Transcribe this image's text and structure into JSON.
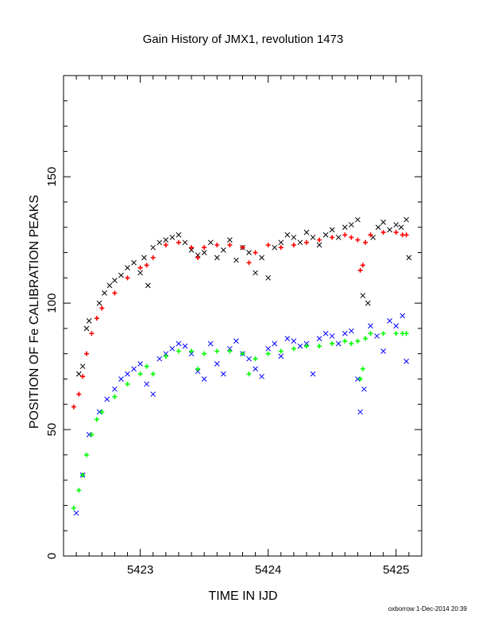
{
  "chart_data": {
    "type": "scatter",
    "title": "Gain History of JMX1, revolution 1473",
    "xlabel": "TIME IN IJD",
    "ylabel": "POSITION OF Fe CALIBRATION PEAKS",
    "xlim": [
      5422.4,
      5425.2
    ],
    "ylim": [
      0,
      190
    ],
    "x_ticks": [
      5423,
      5424,
      5425
    ],
    "y_ticks": [
      0,
      50,
      100,
      150
    ],
    "grid": false,
    "footer": "oxborrow 1-Dec-2014 20:39",
    "series": [
      {
        "color": "#000000",
        "marker": "x",
        "x": [
          5422.52,
          5422.55,
          5422.58,
          5422.6,
          5422.68,
          5422.72,
          5422.76,
          5422.8,
          5422.85,
          5422.9,
          5422.95,
          5423.0,
          5423.03,
          5423.06,
          5423.1,
          5423.15,
          5423.2,
          5423.25,
          5423.3,
          5423.35,
          5423.4,
          5423.45,
          5423.5,
          5423.55,
          5423.6,
          5423.65,
          5423.7,
          5423.75,
          5423.8,
          5423.85,
          5423.9,
          5423.95,
          5424.0,
          5424.05,
          5424.1,
          5424.15,
          5424.2,
          5424.25,
          5424.3,
          5424.35,
          5424.4,
          5424.45,
          5424.5,
          5424.55,
          5424.6,
          5424.65,
          5424.7,
          5424.74,
          5424.78,
          5424.82,
          5424.86,
          5424.9,
          5424.95,
          5425.0,
          5425.04,
          5425.08,
          5425.1
        ],
        "values": [
          72,
          75,
          90,
          93,
          100,
          104,
          107,
          109,
          111,
          114,
          116,
          112,
          118,
          107,
          122,
          124,
          125,
          126,
          127,
          124,
          121,
          119,
          120,
          124,
          118,
          121,
          125,
          117,
          122,
          120,
          112,
          118,
          110,
          122,
          124,
          127,
          126,
          124,
          128,
          126,
          123,
          127,
          129,
          126,
          130,
          131,
          133,
          103,
          100,
          126,
          130,
          132,
          129,
          131,
          130,
          133,
          118
        ]
      },
      {
        "color": "#ff0000",
        "marker": "+",
        "x": [
          5422.48,
          5422.52,
          5422.55,
          5422.58,
          5422.62,
          5422.66,
          5422.7,
          5422.8,
          5422.9,
          5423.0,
          5423.05,
          5423.1,
          5423.2,
          5423.3,
          5423.4,
          5423.45,
          5423.5,
          5423.6,
          5423.7,
          5423.8,
          5423.85,
          5423.9,
          5424.0,
          5424.1,
          5424.2,
          5424.3,
          5424.4,
          5424.5,
          5424.6,
          5424.65,
          5424.7,
          5424.72,
          5424.74,
          5424.76,
          5424.8,
          5424.9,
          5425.0,
          5425.05,
          5425.08
        ],
        "values": [
          59,
          64,
          71,
          80,
          88,
          94,
          98,
          104,
          110,
          114,
          115,
          118,
          123,
          124,
          122,
          118,
          122,
          123,
          123,
          122,
          116,
          120,
          123,
          122,
          123,
          124,
          125,
          126,
          127,
          126,
          125,
          113,
          115,
          124,
          127,
          128,
          128,
          127,
          127
        ]
      },
      {
        "color": "#0000ff",
        "marker": "x",
        "x": [
          5422.5,
          5422.55,
          5422.6,
          5422.68,
          5422.74,
          5422.8,
          5422.85,
          5422.9,
          5422.95,
          5423.0,
          5423.05,
          5423.1,
          5423.15,
          5423.2,
          5423.25,
          5423.3,
          5423.35,
          5423.4,
          5423.45,
          5423.5,
          5423.55,
          5423.6,
          5423.65,
          5423.7,
          5423.75,
          5423.8,
          5423.85,
          5423.9,
          5423.95,
          5424.0,
          5424.05,
          5424.1,
          5424.15,
          5424.2,
          5424.25,
          5424.3,
          5424.35,
          5424.4,
          5424.45,
          5424.5,
          5424.55,
          5424.6,
          5424.65,
          5424.7,
          5424.72,
          5424.75,
          5424.8,
          5424.85,
          5424.9,
          5424.95,
          5425.0,
          5425.05,
          5425.08
        ],
        "values": [
          17,
          32,
          48,
          57,
          62,
          66,
          70,
          72,
          74,
          76,
          68,
          64,
          78,
          80,
          82,
          84,
          83,
          80,
          73,
          70,
          84,
          76,
          72,
          82,
          85,
          80,
          78,
          74,
          71,
          82,
          84,
          79,
          86,
          85,
          83,
          84,
          72,
          86,
          88,
          87,
          84,
          88,
          89,
          70,
          57,
          66,
          91,
          87,
          81,
          93,
          91,
          95,
          77
        ]
      },
      {
        "color": "#00ff00",
        "marker": "+",
        "x": [
          5422.48,
          5422.52,
          5422.55,
          5422.58,
          5422.62,
          5422.66,
          5422.7,
          5422.8,
          5422.9,
          5423.0,
          5423.05,
          5423.1,
          5423.2,
          5423.3,
          5423.4,
          5423.45,
          5423.5,
          5423.6,
          5423.7,
          5423.8,
          5423.85,
          5423.9,
          5424.0,
          5424.1,
          5424.2,
          5424.3,
          5424.4,
          5424.5,
          5424.6,
          5424.65,
          5424.7,
          5424.72,
          5424.74,
          5424.76,
          5424.8,
          5424.9,
          5425.0,
          5425.05,
          5425.08
        ],
        "values": [
          19,
          26,
          32,
          40,
          48,
          54,
          57,
          63,
          68,
          72,
          75,
          72,
          79,
          81,
          81,
          74,
          80,
          81,
          81,
          80,
          72,
          78,
          80,
          81,
          82,
          83,
          83,
          84,
          85,
          84,
          85,
          70,
          74,
          86,
          88,
          88,
          88,
          88,
          88
        ]
      }
    ]
  }
}
